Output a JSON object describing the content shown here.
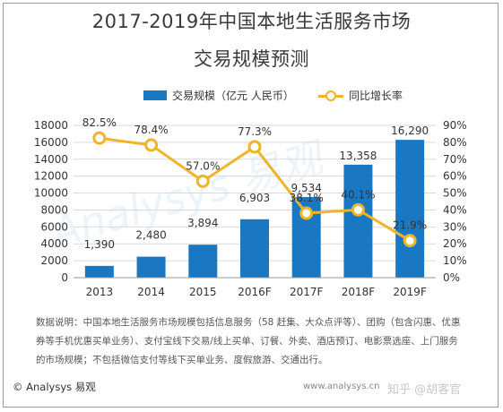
{
  "title_line1": "2017-2019年中国本地生活服务市场",
  "title_line2": "交易规模预测",
  "legend": {
    "bar_label": "交易规模（亿元 人民币）",
    "line_label": "同比增长率"
  },
  "notes": {
    "line1": "数据说明：中国本地生活服务市场规模包括信息服务（58 赶集、大众点评等）、团购（包含闪惠、优惠",
    "line2": "券等手机优惠买单业务）、支付宝线下交易/线上买单、订餐、外卖、酒店预订、电影票选座、上门服务",
    "line3": "的市场规模；不包括微信支付等线下买单业务、度假旅游、交通出行。"
  },
  "footer": {
    "copyright": "© Analysys 易观",
    "site": "www.analysys.cn",
    "zhihu": "知乎 @胡客官"
  },
  "watermark": "Analysys 易观",
  "colors": {
    "bar": "#1a78c2",
    "line": "#f0b429",
    "grid": "#d9d9d9"
  },
  "chart_data": {
    "type": "bar",
    "categories": [
      "2013",
      "2014",
      "2015",
      "2016F",
      "2017F",
      "2018F",
      "2019F"
    ],
    "series": [
      {
        "name": "交易规模（亿元 人民币）",
        "type": "bar",
        "axis": "left",
        "values": [
          1390,
          2480,
          3894,
          6903,
          9534,
          13358,
          16290
        ],
        "labels": [
          "1,390",
          "2,480",
          "3,894",
          "6,903",
          "9,534",
          "13,358",
          "16,290"
        ]
      },
      {
        "name": "同比增长率",
        "type": "line",
        "axis": "right",
        "values": [
          82.5,
          78.4,
          57.0,
          77.3,
          38.1,
          40.1,
          21.9
        ],
        "labels": [
          "82.5%",
          "78.4%",
          "57.0%",
          "77.3%",
          "38.1%",
          "40.1%",
          "21.9%"
        ]
      }
    ],
    "y_left": {
      "range": [
        0,
        18000
      ],
      "ticks": [
        "0",
        "2000",
        "4000",
        "6000",
        "8000",
        "10000",
        "12000",
        "14000",
        "16000",
        "18000"
      ]
    },
    "y_right": {
      "range": [
        0,
        90
      ],
      "ticks": [
        "0%",
        "10%",
        "20%",
        "30%",
        "40%",
        "50%",
        "60%",
        "70%",
        "80%",
        "90%"
      ]
    },
    "grid": true,
    "legend_position": "top"
  }
}
